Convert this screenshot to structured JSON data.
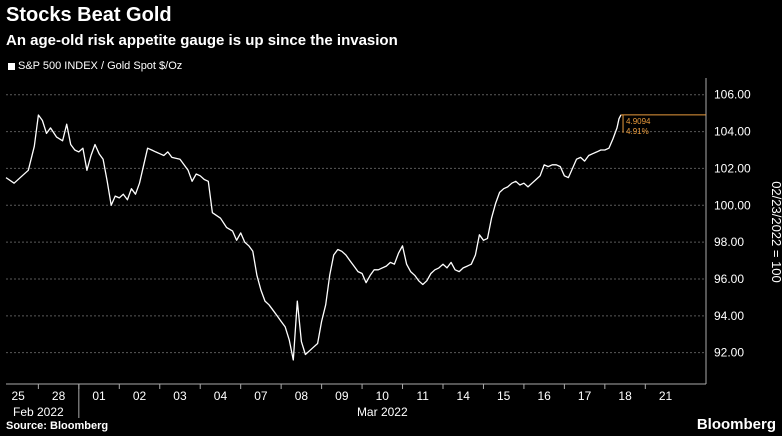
{
  "header": {
    "title": "Stocks Beat Gold",
    "subtitle": "An age-old risk appetite gauge is up since the invasion"
  },
  "legend": {
    "label": "S&P 500 INDEX / Gold Spot $/Oz"
  },
  "footer": {
    "source": "Source: Bloomberg",
    "brand": "Bloomberg"
  },
  "colors": {
    "background": "#000000",
    "line": "#ffffff",
    "grid": "#5a5a5a",
    "annotation": "#e89a3c"
  },
  "chart_data": {
    "type": "line",
    "title": "Stocks Beat Gold",
    "ylabel": "02/23/2022 = 100",
    "ylim": [
      90.3,
      106.8
    ],
    "yticks": [
      92.0,
      94.0,
      96.0,
      98.0,
      100.0,
      102.0,
      104.0,
      106.0
    ],
    "ytick_labels": [
      "92.00",
      "94.00",
      "96.00",
      "98.00",
      "100.00",
      "102.00",
      "104.00",
      "106.00"
    ],
    "xlim": [
      0,
      17.3
    ],
    "x_ticks": [
      {
        "label": "25",
        "x": 0.3
      },
      {
        "label": "28",
        "x": 1.3
      },
      {
        "label": "01",
        "x": 2.3
      },
      {
        "label": "02",
        "x": 3.3
      },
      {
        "label": "03",
        "x": 4.3
      },
      {
        "label": "04",
        "x": 5.3
      },
      {
        "label": "07",
        "x": 6.3
      },
      {
        "label": "08",
        "x": 7.3
      },
      {
        "label": "09",
        "x": 8.3
      },
      {
        "label": "10",
        "x": 9.3
      },
      {
        "label": "11",
        "x": 10.3
      },
      {
        "label": "14",
        "x": 11.3
      },
      {
        "label": "15",
        "x": 12.3
      },
      {
        "label": "16",
        "x": 13.3
      },
      {
        "label": "17",
        "x": 14.3
      },
      {
        "label": "18",
        "x": 15.3
      },
      {
        "label": "21",
        "x": 16.3
      }
    ],
    "x_groups": [
      {
        "label": "Feb 2022",
        "x": 0.8
      },
      {
        "label": "Mar 2022",
        "x": 9.3
      }
    ],
    "series": [
      {
        "name": "S&P 500 INDEX / Gold Spot $/Oz",
        "x": [
          0.0,
          0.2,
          0.4,
          0.55,
          0.7,
          0.8,
          0.9,
          1.0,
          1.1,
          1.25,
          1.4,
          1.5,
          1.6,
          1.7,
          1.8,
          1.9,
          2.0,
          2.1,
          2.2,
          2.3,
          2.4,
          2.5,
          2.6,
          2.7,
          2.8,
          2.9,
          3.0,
          3.1,
          3.2,
          3.3,
          3.5,
          3.6,
          3.7,
          3.8,
          3.9,
          4.0,
          4.1,
          4.3,
          4.5,
          4.6,
          4.7,
          4.8,
          4.9,
          5.0,
          5.1,
          5.3,
          5.45,
          5.6,
          5.7,
          5.8,
          5.9,
          6.0,
          6.1,
          6.2,
          6.3,
          6.4,
          6.5,
          6.6,
          6.7,
          6.8,
          6.9,
          7.0,
          7.1,
          7.2,
          7.3,
          7.4,
          7.5,
          7.6,
          7.7,
          7.8,
          7.9,
          8.0,
          8.1,
          8.2,
          8.3,
          8.4,
          8.5,
          8.6,
          8.7,
          8.8,
          8.9,
          9.0,
          9.1,
          9.2,
          9.3,
          9.4,
          9.5,
          9.6,
          9.7,
          9.8,
          9.9,
          10.0,
          10.1,
          10.2,
          10.3,
          10.4,
          10.5,
          10.6,
          10.7,
          10.8,
          10.9,
          11.0,
          11.1,
          11.2,
          11.3,
          11.4,
          11.5,
          11.6,
          11.7,
          11.8,
          11.9,
          12.0,
          12.1,
          12.2,
          12.3,
          12.4,
          12.5,
          12.6,
          12.7,
          12.8,
          12.9,
          13.0,
          13.1,
          13.2,
          13.3,
          13.4,
          13.5,
          13.6,
          13.7,
          13.8,
          13.9,
          14.0,
          14.1,
          14.2,
          14.3,
          14.4,
          14.5,
          14.6,
          14.7,
          14.8,
          14.9,
          15.0,
          15.1,
          15.15,
          15.2
        ],
        "values": [
          101.5,
          101.2,
          101.6,
          101.9,
          103.2,
          104.9,
          104.6,
          103.9,
          104.2,
          103.7,
          103.5,
          104.4,
          103.3,
          103.0,
          102.9,
          103.1,
          101.9,
          102.7,
          103.3,
          102.8,
          102.5,
          101.3,
          100.0,
          100.5,
          100.4,
          100.6,
          100.3,
          100.9,
          100.6,
          101.2,
          103.1,
          103.0,
          102.9,
          102.8,
          102.7,
          102.9,
          102.6,
          102.5,
          101.9,
          101.3,
          101.7,
          101.6,
          101.4,
          101.3,
          99.6,
          99.3,
          98.8,
          98.6,
          98.1,
          98.5,
          98.0,
          97.8,
          97.5,
          96.2,
          95.4,
          94.8,
          94.6,
          94.3,
          94.0,
          93.7,
          93.4,
          92.7,
          91.6,
          94.8,
          92.6,
          91.9,
          92.1,
          92.3,
          92.5,
          93.7,
          94.6,
          96.2,
          97.3,
          97.6,
          97.5,
          97.3,
          97.0,
          96.7,
          96.4,
          96.3,
          95.8,
          96.2,
          96.5,
          96.5,
          96.6,
          96.7,
          96.9,
          96.8,
          97.4,
          97.8,
          96.8,
          96.4,
          96.2,
          95.9,
          95.7,
          95.9,
          96.3,
          96.5,
          96.6,
          96.8,
          96.6,
          96.9,
          96.5,
          96.4,
          96.6,
          96.7,
          96.8,
          97.3,
          98.4,
          98.1,
          98.2,
          99.3,
          100.1,
          100.7,
          100.9,
          101.0,
          101.2,
          101.3,
          101.1,
          101.2,
          101.0,
          101.2,
          101.4,
          101.6,
          102.2,
          102.1,
          102.2,
          102.2,
          102.1,
          101.6,
          101.5,
          102.0,
          102.5,
          102.6,
          102.4,
          102.7,
          102.8,
          102.9,
          103.0,
          103.0,
          103.1,
          103.6,
          104.2,
          104.7,
          104.91
        ]
      }
    ],
    "annotations": {
      "last_value": "4.9094",
      "change_pct": "4.91%",
      "ref_value": 104.91
    }
  }
}
